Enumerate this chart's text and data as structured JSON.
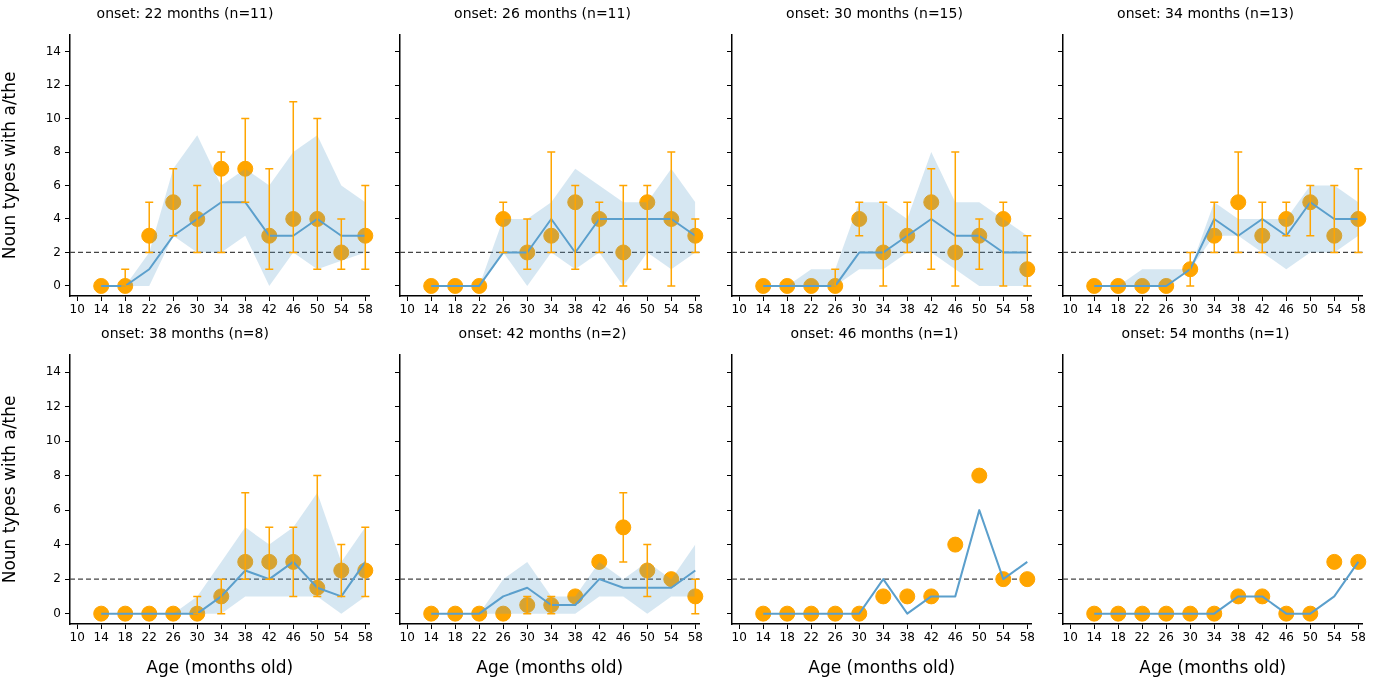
{
  "chart_data": [
    {
      "type": "line",
      "title": "onset: 22 months (n=11)",
      "ylabel": "Noun types with a/the",
      "x": [
        14,
        18,
        22,
        26,
        30,
        34,
        38,
        42,
        46,
        50,
        54,
        58
      ],
      "xlim": [
        8.8,
        58.7
      ],
      "xticks": [
        10,
        14,
        18,
        22,
        26,
        30,
        34,
        38,
        42,
        46,
        50,
        54,
        58
      ],
      "ylim": [
        -0.6,
        15
      ],
      "yticks": [
        0,
        2,
        4,
        6,
        8,
        10,
        12,
        14
      ],
      "ref_lines": [
        {
          "axis": "y",
          "value": 2,
          "color": "#444444",
          "line_style": "dashed"
        }
      ],
      "grid": false,
      "series": [
        {
          "marker": "none",
          "color": "#5b9fcc",
          "values": [
            0,
            0,
            1,
            3,
            4,
            5,
            5,
            3,
            3,
            4,
            3,
            3
          ],
          "lower": [
            0,
            0,
            0,
            3,
            2,
            2,
            3,
            0,
            2,
            1,
            1.5,
            2
          ],
          "upper": [
            0,
            0,
            2,
            7,
            9,
            6,
            7,
            6,
            8,
            9,
            6,
            5
          ]
        },
        {
          "type": "scatter",
          "marker": "circle",
          "color": "#ffa500",
          "values": [
            0,
            0,
            3,
            5,
            4,
            7,
            7,
            3,
            4,
            4,
            2,
            3
          ],
          "errors": [
            null,
            [
              0,
              1
            ],
            [
              2,
              5
            ],
            [
              3,
              7
            ],
            [
              2,
              6
            ],
            [
              2,
              8
            ],
            [
              5,
              10
            ],
            [
              1,
              7
            ],
            [
              2,
              11
            ],
            [
              1,
              10
            ],
            [
              1,
              4
            ],
            [
              1,
              6
            ]
          ]
        }
      ]
    },
    {
      "type": "line",
      "title": "onset: 26 months (n=11)",
      "tick_labels": "x",
      "x": [
        14,
        18,
        22,
        26,
        30,
        34,
        38,
        42,
        46,
        50,
        54,
        58
      ],
      "xlim": [
        8.8,
        58.7
      ],
      "xticks": [
        10,
        14,
        18,
        22,
        26,
        30,
        34,
        38,
        42,
        46,
        50,
        54,
        58
      ],
      "ylim": [
        -0.6,
        15
      ],
      "yticks": [
        0,
        2,
        4,
        6,
        8,
        10,
        12,
        14
      ],
      "ref_lines": [
        {
          "axis": "y",
          "value": 2,
          "color": "#444444",
          "line_style": "dashed"
        }
      ],
      "grid": false,
      "series": [
        {
          "marker": "none",
          "color": "#5b9fcc",
          "values": [
            0,
            0,
            0,
            2,
            2,
            4,
            2,
            4,
            4,
            4,
            4,
            3
          ],
          "lower": [
            0,
            0,
            0,
            2,
            0,
            2,
            1,
            2,
            0,
            2,
            1,
            2
          ],
          "upper": [
            0,
            0,
            0,
            4,
            4,
            5,
            7,
            6,
            5,
            5,
            7,
            5
          ]
        },
        {
          "type": "scatter",
          "marker": "circle",
          "color": "#ffa500",
          "values": [
            0,
            0,
            0,
            4,
            2,
            3,
            5,
            4,
            2,
            5,
            4,
            3
          ],
          "errors": [
            null,
            null,
            null,
            [
              2,
              5
            ],
            [
              1,
              4
            ],
            [
              2,
              8
            ],
            [
              1,
              6
            ],
            [
              2,
              5
            ],
            [
              0,
              6
            ],
            [
              1,
              6
            ],
            [
              0,
              8
            ],
            [
              2,
              4
            ]
          ]
        }
      ]
    },
    {
      "type": "line",
      "title": "onset: 30 months (n=15)",
      "tick_labels": "x",
      "x": [
        14,
        18,
        22,
        26,
        30,
        34,
        38,
        42,
        46,
        50,
        54,
        58
      ],
      "xlim": [
        8.8,
        58.7
      ],
      "xticks": [
        10,
        14,
        18,
        22,
        26,
        30,
        34,
        38,
        42,
        46,
        50,
        54,
        58
      ],
      "ylim": [
        -0.6,
        15
      ],
      "yticks": [
        0,
        2,
        4,
        6,
        8,
        10,
        12,
        14
      ],
      "ref_lines": [
        {
          "axis": "y",
          "value": 2,
          "color": "#444444",
          "line_style": "dashed"
        }
      ],
      "grid": false,
      "series": [
        {
          "marker": "none",
          "color": "#5b9fcc",
          "values": [
            0,
            0,
            0,
            0,
            2,
            2,
            3,
            4,
            3,
            3,
            2,
            2
          ],
          "lower": [
            0,
            0,
            0,
            0,
            1,
            1,
            2,
            2,
            1,
            0,
            0,
            0
          ],
          "upper": [
            0,
            0,
            1,
            1,
            5,
            5,
            4,
            8,
            5,
            5,
            4,
            3
          ]
        },
        {
          "type": "scatter",
          "marker": "circle",
          "color": "#ffa500",
          "values": [
            0,
            0,
            0,
            0,
            4,
            2,
            3,
            5,
            2,
            3,
            4,
            1
          ],
          "errors": [
            null,
            null,
            null,
            [
              0,
              1
            ],
            [
              3,
              5
            ],
            [
              0,
              5
            ],
            [
              2,
              5
            ],
            [
              1,
              7
            ],
            [
              0,
              8
            ],
            [
              1,
              4
            ],
            [
              0,
              5
            ],
            [
              0,
              3
            ]
          ]
        }
      ]
    },
    {
      "type": "line",
      "title": "onset: 34 months (n=13)",
      "tick_labels": "x",
      "x": [
        14,
        18,
        22,
        26,
        30,
        34,
        38,
        42,
        46,
        50,
        54,
        58
      ],
      "xlim": [
        8.8,
        58.7
      ],
      "xticks": [
        10,
        14,
        18,
        22,
        26,
        30,
        34,
        38,
        42,
        46,
        50,
        54,
        58
      ],
      "ylim": [
        -0.6,
        15
      ],
      "yticks": [
        0,
        2,
        4,
        6,
        8,
        10,
        12,
        14
      ],
      "ref_lines": [
        {
          "axis": "y",
          "value": 2,
          "color": "#444444",
          "line_style": "dashed"
        }
      ],
      "grid": false,
      "series": [
        {
          "marker": "none",
          "color": "#5b9fcc",
          "values": [
            0,
            0,
            0,
            0,
            1,
            4,
            3,
            4,
            3,
            5,
            4,
            4
          ],
          "lower": [
            0,
            0,
            0,
            0,
            1,
            3,
            3,
            2,
            1,
            2,
            2,
            3
          ],
          "upper": [
            0,
            0,
            1,
            1,
            1,
            5,
            4,
            4,
            4,
            6,
            6,
            5
          ]
        },
        {
          "type": "scatter",
          "marker": "circle",
          "color": "#ffa500",
          "values": [
            0,
            0,
            0,
            0,
            1,
            3,
            5,
            3,
            4,
            5,
            3,
            4
          ],
          "errors": [
            null,
            null,
            null,
            null,
            [
              0,
              2
            ],
            [
              2,
              5
            ],
            [
              2,
              8
            ],
            [
              2,
              5
            ],
            [
              3,
              5
            ],
            [
              3,
              6
            ],
            [
              2,
              6
            ],
            [
              2,
              7
            ]
          ]
        }
      ]
    },
    {
      "type": "line",
      "title": "onset: 38 months (n=8)",
      "xlabel": "Age (months old)",
      "ylabel": "Noun types with a/the",
      "x": [
        14,
        18,
        22,
        26,
        30,
        34,
        38,
        42,
        46,
        50,
        54,
        58
      ],
      "xlim": [
        8.8,
        58.7
      ],
      "xticks": [
        10,
        14,
        18,
        22,
        26,
        30,
        34,
        38,
        42,
        46,
        50,
        54,
        58
      ],
      "ylim": [
        -0.6,
        15
      ],
      "yticks": [
        0,
        2,
        4,
        6,
        8,
        10,
        12,
        14
      ],
      "ref_lines": [
        {
          "axis": "y",
          "value": 2,
          "color": "#444444",
          "line_style": "dashed"
        }
      ],
      "grid": false,
      "series": [
        {
          "marker": "none",
          "color": "#5b9fcc",
          "values": [
            0,
            0,
            0,
            0,
            0,
            1,
            2.5,
            2,
            3,
            1.5,
            1,
            3
          ],
          "lower": [
            0,
            0,
            0,
            0,
            0,
            0,
            1,
            1,
            1,
            1,
            0,
            1
          ],
          "upper": [
            0,
            0,
            0,
            0,
            1,
            3,
            5,
            4,
            5,
            7,
            3,
            5
          ]
        },
        {
          "type": "scatter",
          "marker": "circle",
          "color": "#ffa500",
          "values": [
            0,
            0,
            0,
            0,
            0,
            1,
            3,
            3,
            3,
            1.5,
            2.5,
            2.5
          ],
          "errors": [
            null,
            null,
            null,
            null,
            [
              0,
              1
            ],
            [
              0,
              2
            ],
            [
              2,
              7
            ],
            [
              2,
              5
            ],
            [
              1,
              5
            ],
            [
              1,
              8
            ],
            [
              1,
              4
            ],
            [
              1,
              5
            ]
          ]
        }
      ]
    },
    {
      "type": "line",
      "title": "onset: 42 months (n=2)",
      "xlabel": "Age (months old)",
      "tick_labels": "x",
      "x": [
        14,
        18,
        22,
        26,
        30,
        34,
        38,
        42,
        46,
        50,
        54,
        58
      ],
      "xlim": [
        8.8,
        58.7
      ],
      "xticks": [
        10,
        14,
        18,
        22,
        26,
        30,
        34,
        38,
        42,
        46,
        50,
        54,
        58
      ],
      "ylim": [
        -0.6,
        15
      ],
      "yticks": [
        0,
        2,
        4,
        6,
        8,
        10,
        12,
        14
      ],
      "ref_lines": [
        {
          "axis": "y",
          "value": 2,
          "color": "#444444",
          "line_style": "dashed"
        }
      ],
      "grid": false,
      "series": [
        {
          "marker": "none",
          "color": "#5b9fcc",
          "values": [
            0,
            0,
            0,
            1,
            1.5,
            0.5,
            0.5,
            2,
            1.5,
            1.5,
            1.5,
            2.5
          ],
          "lower": [
            0,
            0,
            0,
            0,
            0,
            0,
            0,
            1,
            1,
            0,
            1,
            1
          ],
          "upper": [
            0,
            0,
            0,
            2,
            3,
            1,
            1,
            3,
            2,
            3,
            2,
            4
          ]
        },
        {
          "type": "scatter",
          "marker": "circle",
          "color": "#ffa500",
          "values": [
            0,
            0,
            0,
            0,
            0.5,
            0.5,
            1,
            3,
            5,
            2.5,
            2,
            1
          ],
          "errors": [
            null,
            null,
            null,
            null,
            [
              0,
              1
            ],
            [
              0,
              1
            ],
            null,
            null,
            [
              3,
              7
            ],
            [
              1,
              4
            ],
            null,
            [
              0,
              2
            ]
          ]
        }
      ]
    },
    {
      "type": "line",
      "title": "onset: 46 months (n=1)",
      "xlabel": "Age (months old)",
      "tick_labels": "x",
      "x": [
        14,
        18,
        22,
        26,
        30,
        34,
        38,
        42,
        46,
        50,
        54,
        58
      ],
      "xlim": [
        8.8,
        58.7
      ],
      "xticks": [
        10,
        14,
        18,
        22,
        26,
        30,
        34,
        38,
        42,
        46,
        50,
        54,
        58
      ],
      "ylim": [
        -0.6,
        15
      ],
      "yticks": [
        0,
        2,
        4,
        6,
        8,
        10,
        12,
        14
      ],
      "ref_lines": [
        {
          "axis": "y",
          "value": 2,
          "color": "#444444",
          "line_style": "dashed"
        }
      ],
      "grid": false,
      "series": [
        {
          "marker": "none",
          "color": "#5b9fcc",
          "values": [
            0,
            0,
            0,
            0,
            0,
            2,
            0,
            1,
            1,
            6,
            2,
            3
          ]
        },
        {
          "type": "scatter",
          "marker": "circle",
          "color": "#ffa500",
          "values": [
            0,
            0,
            0,
            0,
            0,
            1,
            1,
            1,
            4,
            8,
            2,
            2
          ]
        }
      ]
    },
    {
      "type": "line",
      "title": "onset: 54 months (n=1)",
      "xlabel": "Age (months old)",
      "tick_labels": "x",
      "x": [
        14,
        18,
        22,
        26,
        30,
        34,
        38,
        42,
        46,
        50,
        54,
        58
      ],
      "xlim": [
        8.8,
        58.7
      ],
      "xticks": [
        10,
        14,
        18,
        22,
        26,
        30,
        34,
        38,
        42,
        46,
        50,
        54,
        58
      ],
      "ylim": [
        -0.6,
        15
      ],
      "yticks": [
        0,
        2,
        4,
        6,
        8,
        10,
        12,
        14
      ],
      "ref_lines": [
        {
          "axis": "y",
          "value": 2,
          "color": "#444444",
          "line_style": "dashed"
        }
      ],
      "grid": false,
      "series": [
        {
          "marker": "none",
          "color": "#5b9fcc",
          "values": [
            0,
            0,
            0,
            0,
            0,
            0,
            1,
            1,
            0,
            0,
            1,
            3
          ]
        },
        {
          "type": "scatter",
          "marker": "circle",
          "color": "#ffa500",
          "values": [
            0,
            0,
            0,
            0,
            0,
            0,
            1,
            1,
            0,
            0,
            3,
            3
          ]
        }
      ]
    }
  ]
}
